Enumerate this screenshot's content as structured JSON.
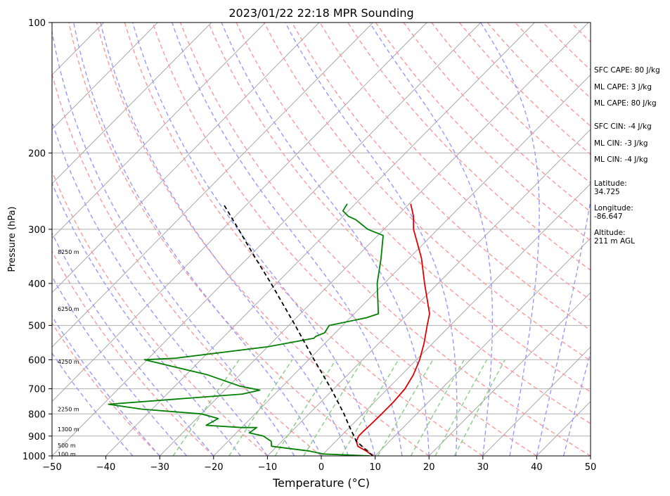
{
  "chart_data": {
    "type": "line",
    "subtype": "skew-t log-p sounding",
    "title": "2023/01/22 22:18 MPR Sounding",
    "xlabel": "Temperature (°C)",
    "ylabel": "Pressure (hPa)",
    "xlim": [
      -50,
      50
    ],
    "ylim": [
      1000,
      100
    ],
    "y_scale": "log",
    "x_ticks": [
      "−50",
      "−40",
      "−30",
      "−20",
      "−10",
      "0",
      "10",
      "20",
      "30",
      "40",
      "50"
    ],
    "x_tick_values": [
      -50,
      -40,
      -30,
      -20,
      -10,
      0,
      10,
      20,
      30,
      40,
      50
    ],
    "y_ticks": [
      "100",
      "200",
      "300",
      "400",
      "500",
      "600",
      "700",
      "800",
      "900",
      "1000"
    ],
    "y_tick_values": [
      100,
      200,
      300,
      400,
      500,
      600,
      700,
      800,
      900,
      1000
    ],
    "grid": "horizontal at pressure ticks",
    "series": [
      {
        "role": "temperature",
        "color": "#e00000",
        "points": [
          [
            1000,
            9.6
          ],
          [
            975,
            7.5
          ],
          [
            950,
            5.0
          ],
          [
            925,
            3.8
          ],
          [
            900,
            3.3
          ],
          [
            875,
            3.3
          ],
          [
            850,
            3.4
          ],
          [
            800,
            3.5
          ],
          [
            750,
            3.5
          ],
          [
            700,
            3.2
          ],
          [
            650,
            2.2
          ],
          [
            600,
            0.6
          ],
          [
            550,
            -1.6
          ],
          [
            500,
            -4.3
          ],
          [
            470,
            -6.0
          ],
          [
            400,
            -12.5
          ],
          [
            350,
            -17.7
          ],
          [
            300,
            -24.5
          ],
          [
            280,
            -26.9
          ],
          [
            262,
            -29.7
          ]
        ]
      },
      {
        "role": "dewpoint",
        "color": "#008000",
        "points": [
          [
            1000,
            9.0
          ],
          [
            990,
            0.0
          ],
          [
            975,
            -3.0
          ],
          [
            950,
            -11.0
          ],
          [
            925,
            -12.0
          ],
          [
            920,
            -12.5
          ],
          [
            900,
            -14.4
          ],
          [
            885,
            -17.6
          ],
          [
            860,
            -17.2
          ],
          [
            860,
            -20.0
          ],
          [
            850,
            -27.0
          ],
          [
            820,
            -26.0
          ],
          [
            800,
            -30.0
          ],
          [
            780,
            -42.0
          ],
          [
            760,
            -49.0
          ],
          [
            720,
            -26.0
          ],
          [
            705,
            -23.5
          ],
          [
            690,
            -28.0
          ],
          [
            650,
            -36.0
          ],
          [
            600,
            -50.5
          ],
          [
            595,
            -45.0
          ],
          [
            560,
            -30.0
          ],
          [
            535,
            -23.0
          ],
          [
            530,
            -23.0
          ],
          [
            520,
            -22.0
          ],
          [
            500,
            -22.5
          ],
          [
            480,
            -17.0
          ],
          [
            470,
            -15.5
          ],
          [
            400,
            -21.3
          ],
          [
            350,
            -25.2
          ],
          [
            310,
            -29.0
          ],
          [
            300,
            -33.0
          ],
          [
            285,
            -37.0
          ],
          [
            280,
            -39.0
          ],
          [
            272,
            -41.0
          ],
          [
            262,
            -41.5
          ]
        ]
      },
      {
        "role": "parcel path",
        "color": "#000000",
        "linestyle": "dashed",
        "points": [
          [
            1000,
            9.6
          ],
          [
            925,
            3.8
          ],
          [
            850,
            -0.5
          ],
          [
            800,
            -3.5
          ],
          [
            700,
            -10.5
          ],
          [
            600,
            -19.0
          ],
          [
            500,
            -28.8
          ],
          [
            400,
            -41.0
          ],
          [
            350,
            -48.5
          ],
          [
            300,
            -57.0
          ],
          [
            262,
            -64.5
          ]
        ]
      }
    ],
    "background_lines": {
      "isotherms": {
        "color": "#a0a0a0",
        "values": [
          -150,
          -140,
          -130,
          -120,
          -110,
          -100,
          -90,
          -80,
          -70,
          -60,
          -50,
          -40,
          -30,
          -20,
          -10,
          0,
          10,
          20,
          30,
          40,
          50
        ]
      },
      "dry_adiabats": {
        "color": "#ff9999",
        "values": [
          -30,
          -20,
          -10,
          0,
          10,
          20,
          30,
          40,
          50,
          60,
          70,
          80,
          90,
          100,
          110,
          120,
          130,
          140,
          150,
          160,
          170,
          180,
          190,
          200,
          210,
          220
        ]
      },
      "moist_adiabats": {
        "color": "#9999ff",
        "values": [
          -35,
          -30,
          -25,
          -20,
          -15,
          -10,
          -5,
          0,
          5,
          10,
          15,
          20,
          25,
          30,
          35,
          40,
          45
        ]
      },
      "mixing_ratio": {
        "color": "#88cc88",
        "values": [
          0.4,
          1,
          2,
          3,
          5,
          8,
          12,
          16,
          20
        ]
      }
    },
    "height_labels": [
      {
        "p": 338,
        "text": "8250 m"
      },
      {
        "p": 458,
        "text": "6250 m"
      },
      {
        "p": 606,
        "text": "4250 m"
      },
      {
        "p": 780,
        "text": "2250 m"
      },
      {
        "p": 868,
        "text": "1300 m"
      },
      {
        "p": 945,
        "text": "500 m"
      },
      {
        "p": 990,
        "text": "100 m"
      }
    ]
  },
  "side_panel": {
    "sfc_cape": "SFC CAPE: 80 J/kg",
    "ml_cape_1": "ML CAPE: 3 J/kg",
    "ml_cape_2": "ML CAPE: 80 J/kg",
    "sfc_cin": "SFC CIN: -4 J/kg",
    "ml_cin_1": "ML CIN: -3 J/kg",
    "ml_cin_2": "ML CIN: -4 J/kg",
    "latitude": "Latitude:\n34.725",
    "longitude": "Longitude:\n-86.647",
    "altitude": "Altitude:\n211 m AGL"
  }
}
